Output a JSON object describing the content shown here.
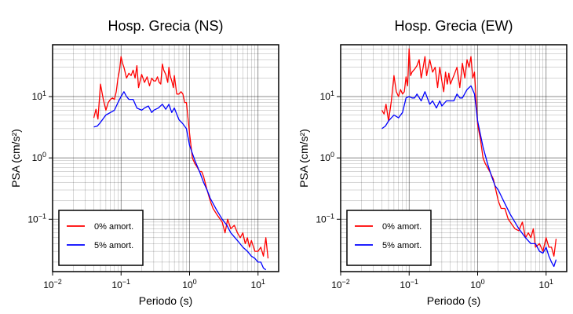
{
  "chart_data": [
    {
      "type": "line",
      "title": "Hosp. Grecia (NS)",
      "xlabel": "Periodo (s)",
      "ylabel": "PSA (cm/s²)",
      "xscale": "log",
      "yscale": "log",
      "xlim": [
        0.01,
        20
      ],
      "ylim": [
        0.014,
        70
      ],
      "grid": true,
      "legend": {
        "position": "bottom-left",
        "entries": [
          "0% amort.",
          "5% amort."
        ]
      },
      "series": [
        {
          "name": "0% amort.",
          "color": "#ff0000",
          "x": [
            0.04,
            0.043,
            0.046,
            0.05,
            0.055,
            0.06,
            0.065,
            0.07,
            0.075,
            0.08,
            0.085,
            0.09,
            0.095,
            0.1,
            0.105,
            0.11,
            0.12,
            0.13,
            0.14,
            0.15,
            0.16,
            0.17,
            0.18,
            0.2,
            0.22,
            0.24,
            0.26,
            0.28,
            0.3,
            0.32,
            0.34,
            0.36,
            0.38,
            0.4,
            0.42,
            0.45,
            0.48,
            0.5,
            0.52,
            0.55,
            0.58,
            0.6,
            0.65,
            0.7,
            0.75,
            0.8,
            0.85,
            0.9,
            1.0,
            1.1,
            1.2,
            1.3,
            1.4,
            1.5,
            1.6,
            1.8,
            2.0,
            2.2,
            2.5,
            2.8,
            3.0,
            3.3,
            3.6,
            4.0,
            4.5,
            5.0,
            5.5,
            6.0,
            6.5,
            7.0,
            7.5,
            8.0,
            9.0,
            10.0,
            11.0,
            12.0,
            13.0,
            14.0
          ],
          "values": [
            4.5,
            6.2,
            4.3,
            16,
            9,
            6,
            8,
            9,
            9.5,
            9,
            12,
            20,
            27,
            45,
            35,
            30,
            20,
            24,
            22,
            27,
            20,
            32,
            14,
            23,
            17,
            21,
            15,
            20,
            18,
            18,
            21,
            17,
            16,
            34,
            27,
            23,
            17,
            30,
            22,
            18,
            14,
            22,
            11,
            11,
            12,
            11,
            8,
            8,
            2.5,
            1.0,
            0.8,
            0.7,
            0.6,
            0.6,
            0.5,
            0.3,
            0.2,
            0.15,
            0.12,
            0.1,
            0.09,
            0.06,
            0.1,
            0.07,
            0.08,
            0.06,
            0.05,
            0.06,
            0.04,
            0.05,
            0.035,
            0.045,
            0.03,
            0.03,
            0.035,
            0.025,
            0.05,
            0.023
          ]
        },
        {
          "name": "5% amort.",
          "color": "#0000ff",
          "x": [
            0.04,
            0.045,
            0.05,
            0.06,
            0.07,
            0.08,
            0.09,
            0.1,
            0.11,
            0.12,
            0.13,
            0.15,
            0.17,
            0.2,
            0.22,
            0.25,
            0.28,
            0.3,
            0.35,
            0.4,
            0.45,
            0.5,
            0.55,
            0.6,
            0.7,
            0.8,
            0.9,
            1.0,
            1.2,
            1.4,
            1.6,
            1.8,
            2.0,
            2.5,
            3.0,
            3.5,
            4.0,
            5.0,
            6.0,
            7.0,
            8.0,
            9.0,
            10.0,
            11.0,
            12.0,
            13.0
          ],
          "values": [
            3.2,
            3.3,
            3.8,
            5,
            5.5,
            6,
            8,
            10,
            12,
            10,
            9,
            9,
            6.5,
            6,
            6.5,
            7,
            5.5,
            6,
            6.5,
            7.5,
            6.2,
            7.5,
            5.5,
            6.5,
            4.2,
            3.6,
            3.0,
            1.6,
            0.9,
            0.6,
            0.4,
            0.3,
            0.22,
            0.14,
            0.1,
            0.08,
            0.06,
            0.045,
            0.035,
            0.03,
            0.025,
            0.023,
            0.02,
            0.02,
            0.016,
            0.015
          ]
        }
      ]
    },
    {
      "type": "line",
      "title": "Hosp. Grecia (EW)",
      "xlabel": "Periodo (s)",
      "ylabel": "PSA (cm/s²)",
      "xscale": "log",
      "yscale": "log",
      "xlim": [
        0.01,
        20
      ],
      "ylim": [
        0.014,
        70
      ],
      "grid": true,
      "legend": {
        "position": "bottom-left",
        "entries": [
          "0% amort.",
          "5% amort."
        ]
      },
      "series": [
        {
          "name": "0% amort.",
          "color": "#ff0000",
          "x": [
            0.04,
            0.043,
            0.046,
            0.05,
            0.055,
            0.06,
            0.065,
            0.07,
            0.075,
            0.08,
            0.085,
            0.09,
            0.095,
            0.1,
            0.105,
            0.11,
            0.12,
            0.13,
            0.14,
            0.15,
            0.16,
            0.17,
            0.18,
            0.2,
            0.22,
            0.24,
            0.26,
            0.28,
            0.3,
            0.32,
            0.34,
            0.36,
            0.38,
            0.4,
            0.45,
            0.5,
            0.55,
            0.6,
            0.65,
            0.7,
            0.75,
            0.8,
            0.85,
            0.9,
            1.0,
            1.1,
            1.2,
            1.3,
            1.5,
            1.7,
            2.0,
            2.2,
            2.5,
            2.8,
            3.0,
            3.5,
            4.0,
            4.5,
            5.0,
            5.5,
            6.0,
            6.5,
            7.0,
            8.0,
            9.0,
            10.0,
            11.0,
            12.0,
            13.0,
            14.0
          ],
          "values": [
            6,
            5.2,
            7.5,
            4,
            8.5,
            22,
            12,
            10,
            13,
            11,
            12,
            21,
            15,
            60,
            22,
            25,
            28,
            32,
            40,
            20,
            30,
            45,
            22,
            40,
            25,
            30,
            14,
            30,
            18,
            12,
            25,
            16,
            24,
            16,
            22,
            30,
            14,
            35,
            20,
            40,
            30,
            45,
            20,
            25,
            3.5,
            2.0,
            1.0,
            0.8,
            0.6,
            0.45,
            0.2,
            0.15,
            0.15,
            0.1,
            0.09,
            0.07,
            0.065,
            0.09,
            0.05,
            0.06,
            0.05,
            0.07,
            0.035,
            0.04,
            0.03,
            0.05,
            0.035,
            0.035,
            0.025,
            0.048
          ]
        },
        {
          "name": "5% amort.",
          "color": "#0000ff",
          "x": [
            0.04,
            0.045,
            0.05,
            0.06,
            0.07,
            0.08,
            0.09,
            0.1,
            0.11,
            0.12,
            0.13,
            0.15,
            0.17,
            0.2,
            0.22,
            0.25,
            0.28,
            0.3,
            0.35,
            0.4,
            0.45,
            0.5,
            0.55,
            0.6,
            0.7,
            0.8,
            0.9,
            1.0,
            1.2,
            1.4,
            1.6,
            1.8,
            2.0,
            2.5,
            3.0,
            3.5,
            4.0,
            5.0,
            6.0,
            7.0,
            8.0,
            9.0,
            10.0,
            11.0,
            12.0,
            13.0,
            14.0
          ],
          "values": [
            3.0,
            3.3,
            4.0,
            5.0,
            4.5,
            5.5,
            9.5,
            10,
            9.5,
            9.5,
            11,
            8.5,
            12,
            7.5,
            8.5,
            6.5,
            8.5,
            7,
            8.5,
            8.5,
            8.5,
            11,
            9.5,
            9.5,
            13,
            15,
            11,
            4,
            1.5,
            0.8,
            0.5,
            0.35,
            0.3,
            0.18,
            0.12,
            0.09,
            0.07,
            0.05,
            0.04,
            0.04,
            0.03,
            0.028,
            0.035,
            0.025,
            0.02,
            0.017,
            0.022
          ]
        }
      ]
    }
  ]
}
